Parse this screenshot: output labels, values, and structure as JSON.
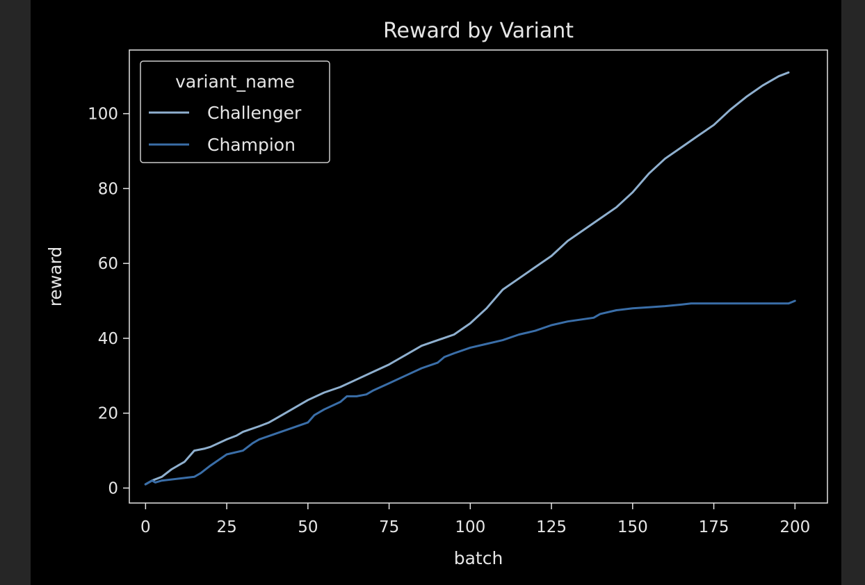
{
  "chart_data": {
    "type": "line",
    "title": "Reward by Variant",
    "xlabel": "batch",
    "ylabel": "reward",
    "xlim": [
      -5,
      210
    ],
    "ylim": [
      -4,
      117
    ],
    "xticks": [
      0,
      25,
      50,
      75,
      100,
      125,
      150,
      175,
      200
    ],
    "yticks": [
      0,
      20,
      40,
      60,
      80,
      100
    ],
    "grid": false,
    "legend": {
      "title": "variant_name",
      "placement": "top-left"
    },
    "series": [
      {
        "name": "Challenger",
        "color": "#8fb0cf",
        "x": [
          0,
          2,
          5,
          8,
          10,
          12,
          15,
          18,
          20,
          25,
          28,
          30,
          35,
          38,
          40,
          45,
          50,
          55,
          60,
          65,
          70,
          75,
          78,
          80,
          85,
          90,
          95,
          100,
          105,
          110,
          115,
          120,
          125,
          130,
          135,
          140,
          145,
          150,
          155,
          160,
          165,
          170,
          175,
          180,
          185,
          190,
          195,
          198
        ],
        "y": [
          1,
          2,
          3,
          5,
          6,
          7,
          10,
          10.5,
          11,
          13,
          14,
          15,
          16.5,
          17.5,
          18.5,
          21,
          23.5,
          25.5,
          27,
          29,
          31,
          33,
          34.5,
          35.5,
          38,
          39.5,
          41,
          44,
          48,
          53,
          56,
          59,
          62,
          66,
          69,
          72,
          75,
          79,
          84,
          88,
          91,
          94,
          97,
          101,
          104.5,
          107.5,
          110,
          111
        ]
      },
      {
        "name": "Champion",
        "color": "#3a6ea8",
        "x": [
          0,
          2,
          3,
          5,
          10,
          15,
          17,
          20,
          25,
          30,
          33,
          35,
          40,
          45,
          50,
          52,
          55,
          60,
          62,
          65,
          68,
          70,
          75,
          80,
          85,
          90,
          92,
          95,
          100,
          105,
          110,
          115,
          120,
          125,
          130,
          138,
          140,
          145,
          150,
          155,
          160,
          165,
          168,
          180,
          190,
          198,
          200
        ],
        "y": [
          1,
          2,
          1.5,
          2,
          2.5,
          3,
          4,
          6,
          9,
          10,
          12,
          13,
          14.5,
          16,
          17.5,
          19.5,
          21,
          23,
          24.5,
          24.5,
          25,
          26,
          28,
          30,
          32,
          33.5,
          35,
          36,
          37.5,
          38.5,
          39.5,
          41,
          42,
          43.5,
          44.5,
          45.5,
          46.5,
          47.5,
          48,
          48.3,
          48.6,
          49,
          49.3,
          49.3,
          49.3,
          49.3,
          50
        ]
      }
    ]
  }
}
